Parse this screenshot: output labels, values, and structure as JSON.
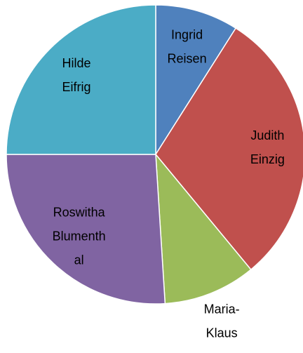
{
  "chart_data": {
    "type": "pie",
    "categories": [
      "Ingrid Reisen",
      "Judith Einzig",
      "Maria-Klaus",
      "Roswitha Blumenthal",
      "Hilde Eifrig"
    ],
    "values": [
      9,
      30,
      10,
      26,
      25
    ],
    "colors": [
      "#4f81bd",
      "#c0504d",
      "#9bbb59",
      "#8064a2",
      "#4bacc6"
    ]
  }
}
